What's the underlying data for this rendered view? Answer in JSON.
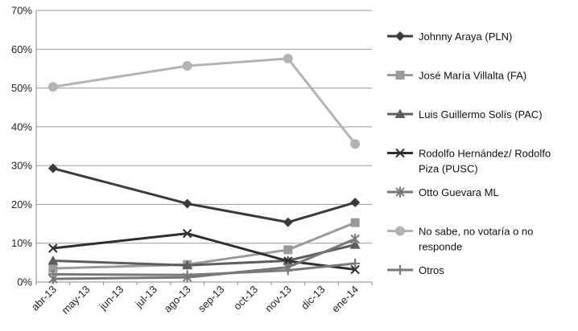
{
  "chart_data": {
    "type": "line",
    "categories": [
      "abr-13",
      "may-13",
      "jun-13",
      "jul-13",
      "ago-13",
      "sep-13",
      "oct-13",
      "nov-13",
      "dic-13",
      "ene-14"
    ],
    "ylim": [
      0,
      70
    ],
    "yticks": [
      0,
      10,
      20,
      30,
      40,
      50,
      60,
      70
    ],
    "ytick_labels": [
      "0%",
      "10%",
      "20%",
      "30%",
      "40%",
      "50%",
      "60%",
      "70%"
    ],
    "grid": "horizontal",
    "legend_position": "right",
    "series": [
      {
        "name": "Johnny Araya (PLN)",
        "marker": "diamond",
        "color": "#3a3a3a",
        "values": [
          29.3,
          null,
          null,
          null,
          20.2,
          null,
          null,
          15.4,
          null,
          20.5
        ]
      },
      {
        "name": "José María Villalta  (FA)",
        "marker": "square",
        "color": "#9a9a9a",
        "values": [
          3.5,
          null,
          null,
          null,
          4.5,
          null,
          null,
          8.3,
          null,
          15.3
        ]
      },
      {
        "name": "Luis Guillermo Solís (PAC)",
        "marker": "triangle",
        "color": "#5d5d5d",
        "values": [
          5.5,
          null,
          null,
          null,
          4.3,
          null,
          null,
          5.5,
          null,
          9.6
        ]
      },
      {
        "name": "Rodolfo Hernández/ Rodolfo Piza (PUSC)",
        "marker": "x",
        "color": "#2e2e2e",
        "values": [
          8.7,
          null,
          null,
          null,
          12.5,
          null,
          null,
          5.4,
          null,
          3.2
        ]
      },
      {
        "name": "Otto Guevara ML",
        "marker": "star",
        "color": "#777777",
        "values": [
          0.8,
          null,
          null,
          null,
          1.2,
          null,
          null,
          3.8,
          null,
          11.1
        ]
      },
      {
        "name": "No sabe, no votaría o no responde",
        "marker": "circle",
        "color": "#b3b3b3",
        "values": [
          50.3,
          null,
          null,
          null,
          55.7,
          null,
          null,
          57.6,
          null,
          35.6
        ]
      },
      {
        "name": "Otros",
        "marker": "plus",
        "color": "#7a7a7a",
        "values": [
          2.0,
          null,
          null,
          null,
          1.8,
          null,
          null,
          3.0,
          null,
          4.8
        ]
      }
    ]
  },
  "legend": {
    "items": [
      {
        "lines": [
          "Johnny Araya (PLN)"
        ]
      },
      {
        "lines": [
          "José María Villalta  (FA)"
        ]
      },
      {
        "lines": [
          "Luis Guillermo Solís (PAC)"
        ]
      },
      {
        "lines": [
          "Rodolfo Hernández/ Rodolfo",
          "Piza (PUSC)"
        ]
      },
      {
        "lines": [
          "Otto Guevara ML"
        ]
      },
      {
        "lines": [
          "No sabe, no votaría o no",
          "responde"
        ]
      },
      {
        "lines": [
          "Otros"
        ]
      }
    ]
  }
}
